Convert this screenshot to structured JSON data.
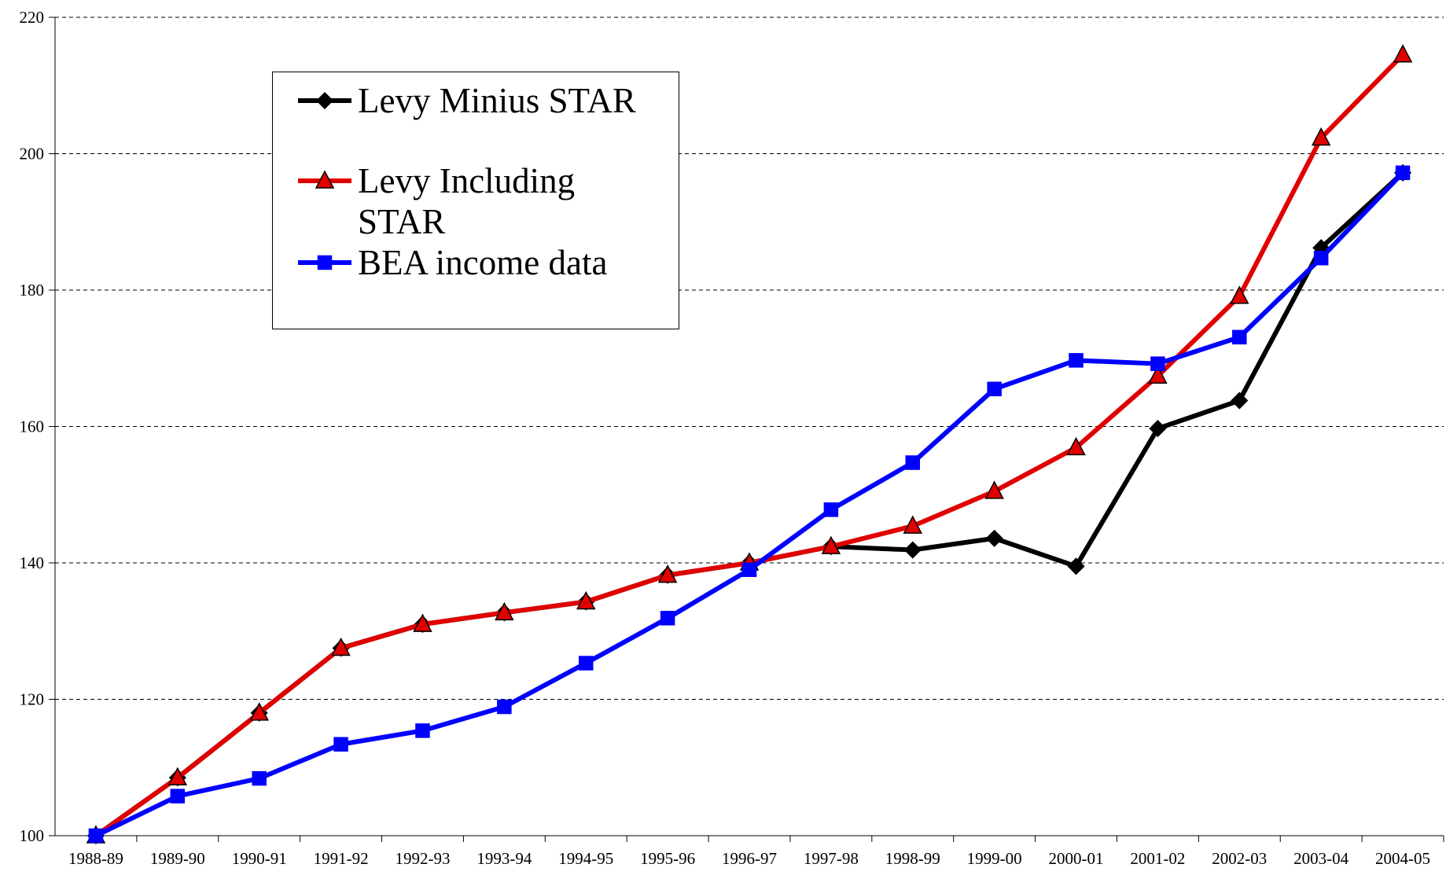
{
  "chart_data": {
    "type": "line",
    "categories": [
      "1988-89",
      "1989-90",
      "1990-91",
      "1991-92",
      "1992-93",
      "1993-94",
      "1994-95",
      "1995-96",
      "1996-97",
      "1997-98",
      "1998-99",
      "1999-00",
      "2000-01",
      "2001-02",
      "2002-03",
      "2003-04",
      "2004-05"
    ],
    "series": [
      {
        "name": "Levy Minius STAR",
        "color": "#000000",
        "marker": "diamond",
        "values": [
          100,
          108.5,
          118,
          127.5,
          131,
          132.7,
          134.3,
          138.2,
          140,
          142.4,
          141.9,
          143.6,
          139.5,
          159.7,
          163.8,
          186.2,
          197.2
        ]
      },
      {
        "name": "Levy Including STAR",
        "color": "#e00000",
        "marker": "triangle",
        "values": [
          100,
          108.5,
          118,
          127.5,
          131,
          132.7,
          134.3,
          138.2,
          140,
          142.4,
          145.4,
          150.5,
          156.9,
          167.4,
          179.1,
          202.3,
          214.5
        ]
      },
      {
        "name": "BEA income data",
        "color": "#0000ff",
        "marker": "square",
        "values": [
          100,
          105.8,
          108.4,
          113.4,
          115.4,
          118.9,
          125.3,
          131.9,
          139,
          147.8,
          154.7,
          165.5,
          169.7,
          169.2,
          173.1,
          184.7,
          197.2
        ]
      }
    ],
    "ylim": [
      100,
      220
    ],
    "yticks": [
      100,
      120,
      140,
      160,
      180,
      200,
      220
    ],
    "grid": true
  }
}
